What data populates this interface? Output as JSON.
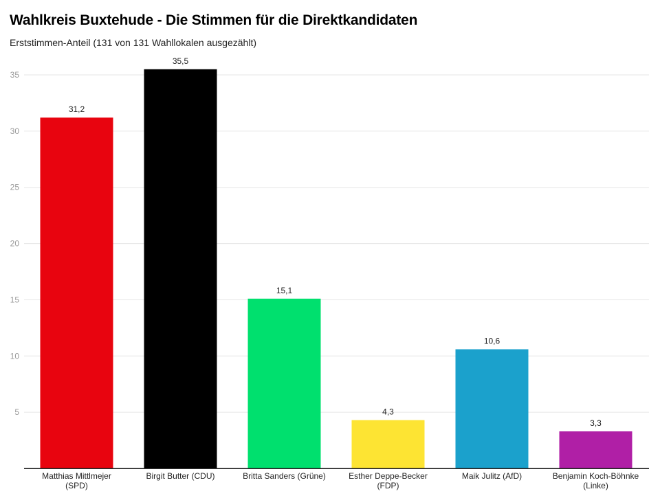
{
  "chart_data": {
    "type": "bar",
    "title": "Wahlkreis Buxtehude - Die Stimmen für die Direktkandidaten",
    "subtitle": "Erststimmen-Anteil (131 von 131 Wahllokalen ausgezählt)",
    "xlabel": "",
    "ylabel": "",
    "ylim": [
      0,
      35
    ],
    "yticks": [
      5,
      10,
      15,
      20,
      25,
      30,
      35
    ],
    "grid": true,
    "categories": [
      [
        "Matthias Mittlmejer",
        "(SPD)"
      ],
      [
        "Birgit Butter (CDU)"
      ],
      [
        "Britta Sanders (Grüne)"
      ],
      [
        "Esther Deppe-Becker",
        "(FDP)"
      ],
      [
        "Maik Julitz (AfD)"
      ],
      [
        "Benjamin Koch-Böhnke",
        "(Linke)"
      ]
    ],
    "values": [
      31.2,
      35.5,
      15.1,
      4.3,
      10.6,
      3.3
    ],
    "value_labels": [
      "31,2",
      "35,5",
      "15,1",
      "4,3",
      "10,6",
      "3,3"
    ],
    "colors": [
      "#e8040f",
      "#000000",
      "#00e06e",
      "#fde433",
      "#1ba1cc",
      "#b01fa6"
    ]
  }
}
